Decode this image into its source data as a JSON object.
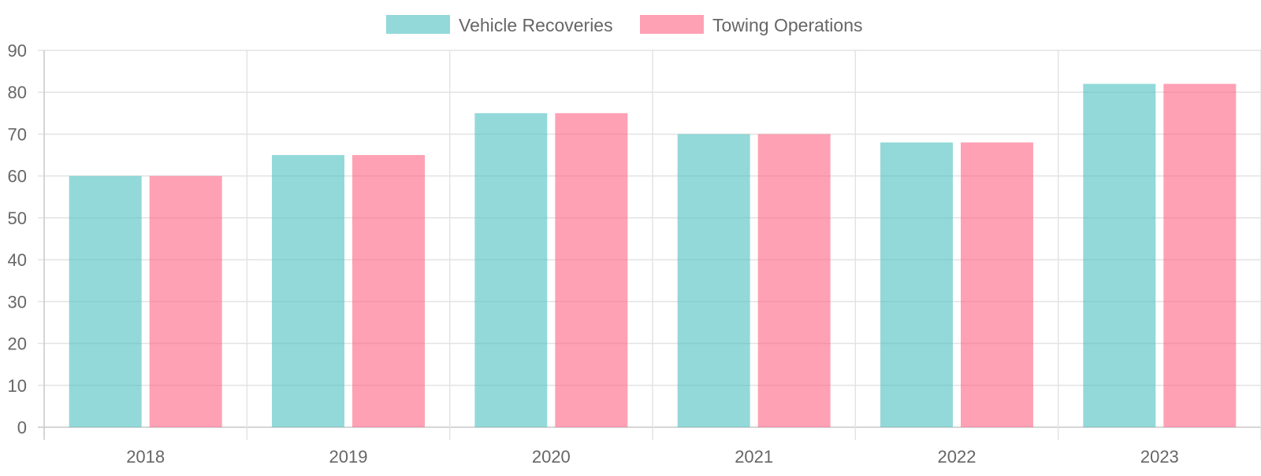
{
  "chart_data": {
    "type": "bar",
    "categories": [
      "2018",
      "2019",
      "2020",
      "2021",
      "2022",
      "2023"
    ],
    "series": [
      {
        "name": "Vehicle Recoveries",
        "values": [
          60,
          65,
          75,
          70,
          68,
          82
        ],
        "color": "#4BC0C0"
      },
      {
        "name": "Towing Operations",
        "values": [
          60,
          65,
          75,
          70,
          68,
          82
        ],
        "color": "#FF6384"
      }
    ],
    "ylim": [
      0,
      90
    ],
    "yticks": [
      "0",
      "10",
      "20",
      "30",
      "40",
      "50",
      "60",
      "70",
      "80",
      "90"
    ],
    "grid": true,
    "legend_position": "top-center"
  }
}
